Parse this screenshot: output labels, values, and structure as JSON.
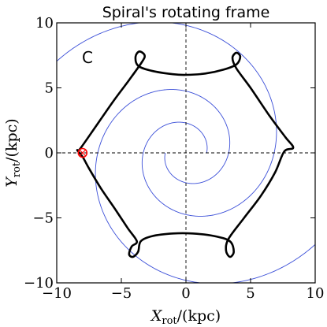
{
  "chart_data": {
    "type": "line",
    "title": "Spiral's rotating frame",
    "panel_label": "C",
    "xlabel": {
      "symbol": "X",
      "subscript": "rot",
      "unit": "/(kpc)"
    },
    "ylabel": {
      "symbol": "Y",
      "subscript": "rot",
      "unit": "/(kpc)"
    },
    "xlim": [
      -10,
      10
    ],
    "ylim": [
      -10,
      10
    ],
    "xticks": [
      -10,
      -5,
      0,
      5,
      10
    ],
    "yticks": [
      -10,
      -5,
      0,
      5,
      10
    ],
    "xtick_labels": [
      "−10",
      "−5",
      "0",
      "5",
      "10"
    ],
    "ytick_labels": [
      "−10",
      "−5",
      "0",
      "5",
      "10"
    ],
    "grid": false,
    "reference_lines": {
      "x": 0,
      "y": 0,
      "style": "dashed"
    },
    "spiral_arms": {
      "color": "#3b4fd8",
      "r_inner": 1.6,
      "r_outer": 16,
      "pitch_deg": 13,
      "arms": [
        {
          "start_angle_deg": 180
        },
        {
          "start_angle_deg": 0
        }
      ]
    },
    "orbit": {
      "color": "#000000",
      "points": [
        [
          -8.2,
          0.3
        ],
        [
          -7.0,
          2.0
        ],
        [
          -5.6,
          4.0
        ],
        [
          -4.4,
          5.6
        ],
        [
          -3.4,
          7.0
        ],
        [
          -3.2,
          7.5
        ],
        [
          -3.6,
          7.8
        ],
        [
          -3.9,
          7.4
        ],
        [
          -3.7,
          6.7
        ],
        [
          -2.6,
          6.3
        ],
        [
          -1.0,
          6.05
        ],
        [
          0.0,
          6.0
        ],
        [
          1.5,
          6.1
        ],
        [
          2.9,
          6.4
        ],
        [
          3.9,
          6.8
        ],
        [
          4.2,
          7.4
        ],
        [
          3.9,
          7.7
        ],
        [
          3.6,
          7.3
        ],
        [
          3.9,
          6.5
        ],
        [
          5.0,
          5.0
        ],
        [
          6.5,
          2.8
        ],
        [
          7.7,
          1.2
        ],
        [
          8.3,
          0.4
        ],
        [
          7.6,
          0.1
        ],
        [
          6.9,
          -1.5
        ],
        [
          5.8,
          -3.3
        ],
        [
          4.5,
          -5.0
        ],
        [
          3.3,
          -6.6
        ],
        [
          3.1,
          -7.5
        ],
        [
          3.4,
          -8.0
        ],
        [
          3.7,
          -7.6
        ],
        [
          3.4,
          -6.8
        ],
        [
          2.2,
          -6.4
        ],
        [
          0.5,
          -6.2
        ],
        [
          -1.0,
          -6.2
        ],
        [
          -2.6,
          -6.4
        ],
        [
          -3.5,
          -6.8
        ],
        [
          -3.7,
          -7.6
        ],
        [
          -4.1,
          -8.0
        ],
        [
          -4.4,
          -7.8
        ],
        [
          -4.2,
          -7.2
        ],
        [
          -3.8,
          -6.8
        ],
        [
          -4.5,
          -5.8
        ],
        [
          -5.5,
          -4.3
        ],
        [
          -6.6,
          -2.7
        ],
        [
          -7.5,
          -1.2
        ],
        [
          -8.0,
          -0.3
        ],
        [
          -8.4,
          0.2
        ]
      ]
    },
    "start_marker": {
      "x": -8.0,
      "y": 0.0,
      "color": "#ff0000"
    }
  }
}
